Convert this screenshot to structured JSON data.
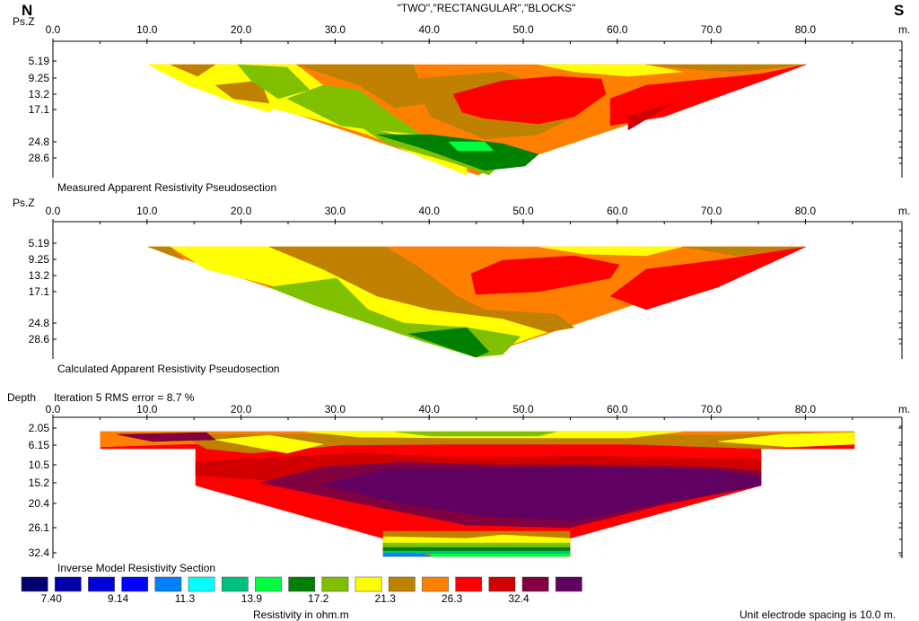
{
  "header": {
    "north_label": "N",
    "south_label": "S",
    "title": "\"TWO\",\"RECTANGULAR\",\"BLOCKS\""
  },
  "chart_data": [
    {
      "type": "heatmap",
      "caption": "Measured Apparent Resistivity Pseudosection",
      "ylabel": "Ps.Z",
      "xunit": "m.",
      "xlim": [
        0,
        90
      ],
      "x_ticks": [
        "0.0",
        "10.0",
        "20.0",
        "30.0",
        "40.0",
        "50.0",
        "60.0",
        "70.0",
        "80.0"
      ],
      "y_ticks": [
        "5.19",
        "9.25",
        "13.2",
        "17.1",
        "24.8",
        "28.6"
      ]
    },
    {
      "type": "heatmap",
      "caption": "Calculated Apparent Resistivity Pseudosection",
      "ylabel": "Ps.Z",
      "xunit": "m.",
      "xlim": [
        0,
        90
      ],
      "x_ticks": [
        "0.0",
        "10.0",
        "20.0",
        "30.0",
        "40.0",
        "50.0",
        "60.0",
        "70.0",
        "80.0"
      ],
      "y_ticks": [
        "5.19",
        "9.25",
        "13.2",
        "17.1",
        "24.8",
        "28.6"
      ]
    },
    {
      "type": "heatmap",
      "caption": "Inverse Model Resistivity Section",
      "ylabel": "Depth",
      "subtitle": "Iteration 5 RMS error = 8.7 %",
      "xunit": "m.",
      "xlim": [
        0,
        90
      ],
      "x_ticks": [
        "0.0",
        "10.0",
        "20.0",
        "30.0",
        "40.0",
        "50.0",
        "60.0",
        "70.0",
        "80.0"
      ],
      "y_ticks": [
        "2.05",
        "6.15",
        "10.5",
        "15.2",
        "20.4",
        "26.1",
        "32.4"
      ]
    }
  ],
  "colorbar": {
    "colors": [
      "#00006e",
      "#0000a8",
      "#0000d8",
      "#0000ff",
      "#0080ff",
      "#00ffff",
      "#00c080",
      "#00ff40",
      "#008000",
      "#80c000",
      "#ffff00",
      "#c08000",
      "#ff8000",
      "#ff0000",
      "#d00000",
      "#800040",
      "#600060"
    ],
    "tick_labels": [
      "7.40",
      "9.14",
      "11.3",
      "13.9",
      "17.2",
      "21.3",
      "26.3",
      "32.4"
    ],
    "label": "Resistivity in ohm.m"
  },
  "footer": {
    "spacing_note": "Unit electrode spacing is 10.0 m."
  }
}
